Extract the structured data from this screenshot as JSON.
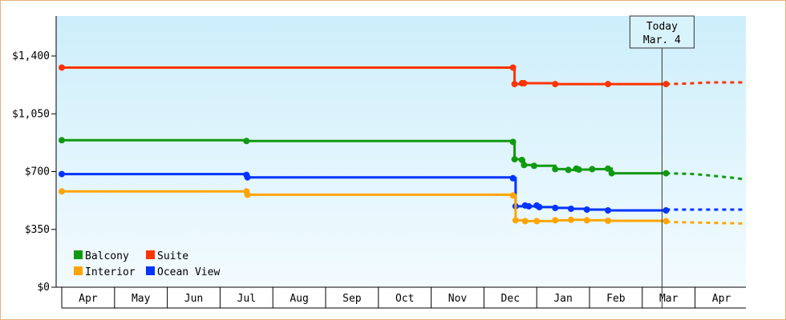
{
  "chart_data": {
    "type": "line",
    "title": "",
    "xlabel": "",
    "ylabel": "",
    "ylim": [
      0,
      1400
    ],
    "y_ticks": [
      "$0",
      "$350",
      "$700",
      "$1,050",
      "$1,400"
    ],
    "y_tick_values": [
      0,
      350,
      700,
      1050,
      1400
    ],
    "months": [
      "Apr",
      "May",
      "Jun",
      "Jul",
      "Aug",
      "Sep",
      "Oct",
      "Nov",
      "Dec",
      "Jan",
      "Feb",
      "Mar",
      "Apr"
    ],
    "today": {
      "line1": "Today",
      "line2": "Mar. 4",
      "x": 11.45
    },
    "grid": false,
    "background_gradient": [
      "#cdeefb",
      "#f3fbff"
    ],
    "legend_position": "bottom-left",
    "series": [
      {
        "name": "Suite",
        "color": "#ff3300",
        "points": [
          [
            0,
            1330
          ],
          [
            8.55,
            1330
          ],
          [
            8.58,
            1230
          ],
          [
            8.72,
            1235
          ],
          [
            8.76,
            1235
          ],
          [
            9.35,
            1230
          ],
          [
            10.35,
            1230
          ],
          [
            11.45,
            1230
          ]
        ],
        "forecast": [
          [
            11.45,
            1230
          ],
          [
            11.75,
            1232
          ],
          [
            12.3,
            1240
          ],
          [
            13.2,
            1240
          ]
        ]
      },
      {
        "name": "Balcony",
        "color": "#119911",
        "points": [
          [
            0,
            890
          ],
          [
            3.5,
            885
          ],
          [
            8.55,
            880
          ],
          [
            8.58,
            775
          ],
          [
            8.72,
            770
          ],
          [
            8.76,
            740
          ],
          [
            8.95,
            735
          ],
          [
            9.35,
            715
          ],
          [
            9.6,
            710
          ],
          [
            9.75,
            718
          ],
          [
            9.8,
            712
          ],
          [
            10.05,
            715
          ],
          [
            10.35,
            718
          ],
          [
            10.42,
            690
          ],
          [
            11.45,
            690
          ]
        ],
        "forecast": [
          [
            11.45,
            690
          ],
          [
            12.0,
            685
          ],
          [
            12.8,
            660
          ],
          [
            13.2,
            650
          ]
        ]
      },
      {
        "name": "Ocean View",
        "color": "#0033ff",
        "points": [
          [
            0,
            685
          ],
          [
            3.5,
            680
          ],
          [
            3.52,
            665
          ],
          [
            8.55,
            660
          ],
          [
            8.6,
            490
          ],
          [
            8.78,
            495
          ],
          [
            8.85,
            490
          ],
          [
            9.0,
            495
          ],
          [
            9.05,
            485
          ],
          [
            9.35,
            480
          ],
          [
            9.65,
            475
          ],
          [
            9.95,
            470
          ],
          [
            10.35,
            465
          ],
          [
            11.45,
            465
          ]
        ],
        "forecast": [
          [
            11.45,
            470
          ],
          [
            12.3,
            470
          ],
          [
            13.2,
            470
          ]
        ]
      },
      {
        "name": "Interior",
        "color": "#ffa500",
        "points": [
          [
            0,
            580
          ],
          [
            3.5,
            580
          ],
          [
            3.52,
            560
          ],
          [
            8.55,
            555
          ],
          [
            8.6,
            405
          ],
          [
            8.78,
            400
          ],
          [
            9.0,
            400
          ],
          [
            9.35,
            405
          ],
          [
            9.65,
            408
          ],
          [
            9.95,
            405
          ],
          [
            10.35,
            402
          ],
          [
            11.45,
            400
          ]
        ],
        "forecast": [
          [
            11.45,
            395
          ],
          [
            12.3,
            390
          ],
          [
            13.2,
            385
          ]
        ]
      }
    ],
    "legend": [
      {
        "name": "Balcony",
        "color": "#119911"
      },
      {
        "name": "Suite",
        "color": "#ff3300"
      },
      {
        "name": "Interior",
        "color": "#ffa500"
      },
      {
        "name": "Ocean View",
        "color": "#0033ff"
      }
    ]
  }
}
